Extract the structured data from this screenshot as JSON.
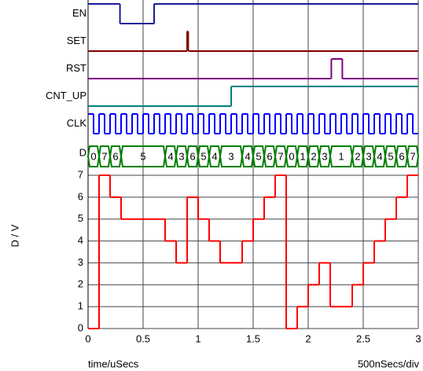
{
  "chart_data": {
    "type": "line",
    "step": true,
    "x_label": "time/uSecs",
    "y_label": "D / V",
    "scale_label": "500nSecs/div",
    "xlim": [
      0,
      3
    ],
    "ylim": [
      0,
      7
    ],
    "xticks": [
      0,
      0.5,
      1,
      1.5,
      2,
      2.5,
      3
    ],
    "yticks": [
      0,
      1,
      2,
      3,
      4,
      5,
      6,
      7
    ],
    "grid": true,
    "bus_color": "#008000",
    "series": [
      {
        "name": "D",
        "color": "#ff0000",
        "x": [
          0,
          0.1,
          0.2,
          0.3,
          0.7,
          0.8,
          0.9,
          1.0,
          1.1,
          1.2,
          1.4,
          1.5,
          1.6,
          1.7,
          1.8,
          1.9,
          2.0,
          2.1,
          2.2,
          2.4,
          2.5,
          2.6,
          2.7,
          2.8,
          2.9
        ],
        "values": [
          0,
          7,
          6,
          5,
          4,
          3,
          6,
          5,
          4,
          3,
          4,
          5,
          6,
          7,
          0,
          1,
          2,
          3,
          1,
          2,
          3,
          4,
          5,
          6,
          7
        ]
      }
    ],
    "digital": [
      {
        "name": "EN",
        "color": "#1a1a9a",
        "x": [
          0,
          0.29,
          0.6
        ],
        "values": [
          1,
          0,
          1
        ]
      },
      {
        "name": "SET",
        "color": "#800000",
        "x": [
          0,
          0.9,
          0.91
        ],
        "values": [
          0,
          1,
          0
        ]
      },
      {
        "name": "RST",
        "color": "#800080",
        "x": [
          0,
          2.21,
          2.31
        ],
        "values": [
          0,
          1,
          0
        ]
      },
      {
        "name": "CNT_UP",
        "color": "#008080",
        "x": [
          0,
          1.3
        ],
        "values": [
          0,
          1
        ]
      },
      {
        "name": "CLK",
        "color": "#0000ff",
        "x": [
          0,
          0.05,
          0.1,
          0.15,
          0.2,
          0.25,
          0.3,
          0.35,
          0.4,
          0.45,
          0.5,
          0.55,
          0.6,
          0.65,
          0.7,
          0.75,
          0.8,
          0.85,
          0.9,
          0.95,
          1.0,
          1.05,
          1.1,
          1.15,
          1.2,
          1.25,
          1.3,
          1.35,
          1.4,
          1.45,
          1.5,
          1.55,
          1.6,
          1.65,
          1.7,
          1.75,
          1.8,
          1.85,
          1.9,
          1.95,
          2.0,
          2.05,
          2.1,
          2.15,
          2.2,
          2.25,
          2.3,
          2.35,
          2.4,
          2.45,
          2.5,
          2.55,
          2.6,
          2.65,
          2.7,
          2.75,
          2.8,
          2.85,
          2.9,
          2.95
        ],
        "values": [
          1,
          0,
          1,
          0,
          1,
          0,
          1,
          0,
          1,
          0,
          1,
          0,
          1,
          0,
          1,
          0,
          1,
          0,
          1,
          0,
          1,
          0,
          1,
          0,
          1,
          0,
          1,
          0,
          1,
          0,
          1,
          0,
          1,
          0,
          1,
          0,
          1,
          0,
          1,
          0,
          1,
          0,
          1,
          0,
          1,
          0,
          1,
          0,
          1,
          0,
          1,
          0,
          1,
          0,
          1,
          0,
          1,
          0,
          1,
          0
        ]
      }
    ]
  }
}
